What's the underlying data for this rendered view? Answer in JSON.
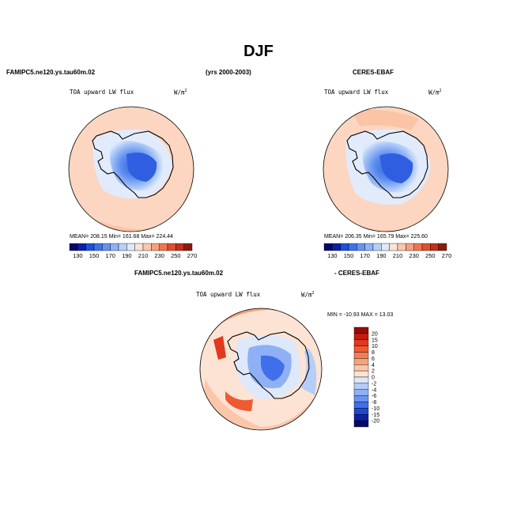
{
  "page": {
    "title": "DJF",
    "left_model": "FAMIPC5.ne120.ys.tau60m.02",
    "years": "(yrs 2000-2003)",
    "right_obs": "CERES-EBAF",
    "diff_left": "FAMIPC5.ne120.ys.tau60m.02",
    "diff_right": "- CERES-EBAF"
  },
  "panels": {
    "model": {
      "variable": "TOA upward LW flux",
      "units_base": "W/m",
      "units_sup": "2",
      "stats": "MEAN= 208.15   Min= 161.68   Max= 224.44"
    },
    "obs": {
      "variable": "TOA upward LW flux",
      "units_base": "W/m",
      "units_sup": "2",
      "stats": "MEAN= 206.35   Min= 165.79   Max= 225.60"
    },
    "diff": {
      "variable": "TOA upward LW flux",
      "units_base": "W/m",
      "units_sup": "2",
      "stats": "MIN = -10.93  MAX =  13.03"
    }
  },
  "colorbar_abs": {
    "labels": [
      "130",
      "150",
      "170",
      "190",
      "210",
      "230",
      "250",
      "270"
    ],
    "colors": [
      "#08086a",
      "#0c1fa8",
      "#1f4fdc",
      "#3b73ea",
      "#6494f0",
      "#8fb2f5",
      "#b8cff8",
      "#dde8fb",
      "#fde3d3",
      "#fbc7ad",
      "#f6a07c",
      "#ef7651",
      "#e0502e",
      "#c2301a",
      "#8c1a0c"
    ]
  },
  "colorbar_diff": {
    "labels": [
      "20",
      "15",
      "10",
      "8",
      "6",
      "4",
      "2",
      "0",
      "-2",
      "-4",
      "-6",
      "-8",
      "-10",
      "-15",
      "-20"
    ],
    "colors": [
      "#9a0a0a",
      "#c21e10",
      "#e0391d",
      "#ee5a32",
      "#f47e52",
      "#f7a37c",
      "#fbc6aa",
      "#fde3d3",
      "#dde8fb",
      "#b5cdf8",
      "#8fb0f5",
      "#6a93f0",
      "#3f6fea",
      "#1f47cf",
      "#0c22a0",
      "#06086a"
    ]
  },
  "chart_data": {
    "type": "heatmap",
    "title": "DJF",
    "subplots": [
      {
        "name": "FAMIPC5.ne120.ys.tau60m.02",
        "variable": "TOA upward LW flux",
        "mean": 208.15,
        "min": 161.68,
        "max": 224.44,
        "levels": [
          130,
          150,
          170,
          190,
          210,
          230,
          250,
          270
        ]
      },
      {
        "name": "CERES-EBAF",
        "variable": "TOA upward LW flux",
        "mean": 206.35,
        "min": 165.79,
        "max": 225.6,
        "levels": [
          130,
          150,
          170,
          190,
          210,
          230,
          250,
          270
        ]
      },
      {
        "name": "FAMIPC5.ne120.ys.tau60m.02 - CERES-EBAF",
        "variable": "TOA upward LW flux",
        "min": -10.93,
        "max": 13.03,
        "levels": [
          -20,
          -15,
          -10,
          -8,
          -6,
          -4,
          -2,
          0,
          2,
          4,
          6,
          8,
          10,
          15,
          20
        ]
      }
    ]
  }
}
